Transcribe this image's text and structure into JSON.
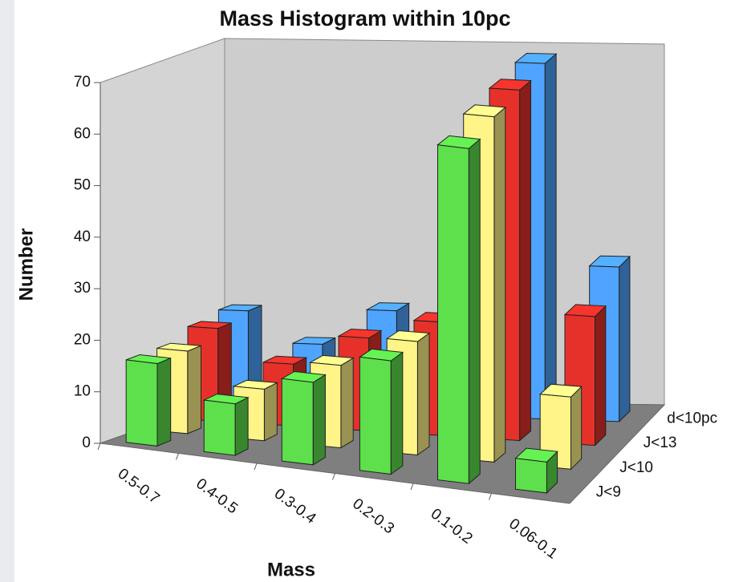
{
  "chart_data": {
    "type": "bar3d",
    "title": "Mass Histogram within 10pc",
    "x_label": "Mass",
    "y_label": "Number",
    "categories": [
      "0.5-0.7",
      "0.4-0.5",
      "0.3-0.4",
      "0.2-0.3",
      "0.1-0.2",
      "0.06-0.1"
    ],
    "series": [
      {
        "name": "J<9",
        "color": "#5ee04c",
        "values": [
          16,
          10,
          16,
          22,
          65,
          6
        ]
      },
      {
        "name": "J<10",
        "color": "#fff487",
        "values": [
          16,
          10,
          16,
          22,
          67,
          14
        ]
      },
      {
        "name": "J<13",
        "color": "#e5312a",
        "values": [
          18,
          12,
          18,
          22,
          68,
          25
        ]
      },
      {
        "name": "d<10pc",
        "color": "#4fa4ff",
        "values": [
          19,
          13,
          20,
          24,
          69,
          30
        ]
      }
    ],
    "ylim": [
      0,
      70
    ],
    "yticks": [
      0,
      10,
      20,
      30,
      40,
      50,
      60,
      70
    ]
  }
}
